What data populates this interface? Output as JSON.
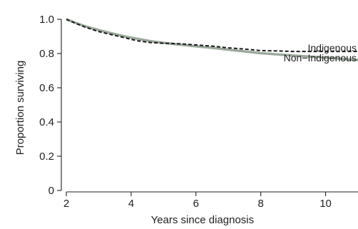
{
  "chart_data": {
    "type": "line",
    "title": "",
    "xlabel": "Years since diagnosis",
    "ylabel": "Proportion surviving",
    "xlim": [
      2,
      11
    ],
    "ylim": [
      0,
      1.0
    ],
    "x_ticks": [
      2,
      4,
      6,
      8,
      10
    ],
    "y_ticks": [
      0,
      0.2,
      0.4,
      0.6,
      0.8,
      1.0
    ],
    "x_tick_labels": [
      "2",
      "4",
      "6",
      "8",
      "10"
    ],
    "y_tick_labels": [
      "0",
      "0.2",
      "0.4",
      "0.6",
      "0.8",
      "1.0"
    ],
    "grid": false,
    "legend": "direct labels at right end of lines",
    "series": [
      {
        "name": "Indigenous",
        "style": "dashed",
        "color": "#1a1a1a",
        "x": [
          2.0,
          2.3,
          2.6,
          3.0,
          3.4,
          3.8,
          4.2,
          4.6,
          5.0,
          5.5,
          6.0,
          6.5,
          7.0,
          7.5,
          8.0,
          8.5,
          9.0,
          9.5,
          10.0,
          10.5,
          11.0
        ],
        "y": [
          1.0,
          0.975,
          0.953,
          0.928,
          0.91,
          0.892,
          0.874,
          0.864,
          0.86,
          0.857,
          0.85,
          0.843,
          0.833,
          0.826,
          0.817,
          0.815,
          0.812,
          0.812,
          0.812,
          0.812,
          0.812
        ]
      },
      {
        "name": "Non−Indigenous",
        "style": "solid",
        "color": "#9aa89a",
        "x": [
          2.0,
          2.3,
          2.6,
          3.0,
          3.4,
          3.8,
          4.2,
          4.6,
          5.0,
          5.5,
          6.0,
          6.5,
          7.0,
          7.5,
          8.0,
          8.5,
          9.0,
          9.5,
          10.0,
          10.5,
          11.0
        ],
        "y": [
          1.0,
          0.978,
          0.958,
          0.937,
          0.918,
          0.9,
          0.886,
          0.872,
          0.862,
          0.852,
          0.842,
          0.833,
          0.822,
          0.812,
          0.802,
          0.795,
          0.788,
          0.782,
          0.776,
          0.769,
          0.762
        ]
      }
    ],
    "series_label_anchor": [
      0.834,
      0.775
    ]
  }
}
